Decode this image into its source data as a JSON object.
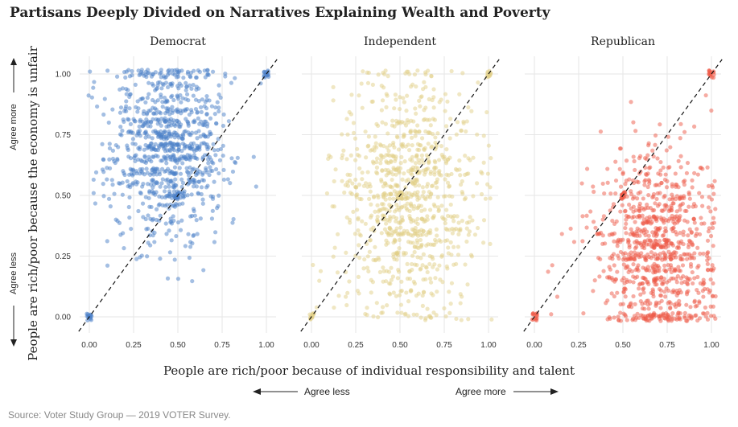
{
  "title": "Partisans Deeply Divided on Narratives Explaining Wealth and Poverty",
  "source": "Source: Voter Study Group — 2019 VOTER Survey.",
  "x_axis": {
    "label": "People are rich/poor because of individual responsibility and talent",
    "agree_less": "Agree less",
    "agree_more": "Agree more"
  },
  "y_axis": {
    "label": "People are rich/poor because the economy is unfair",
    "agree_less": "Agree less",
    "agree_more": "Agree more"
  },
  "chart_data": [
    {
      "type": "scatter",
      "title": "Democrat",
      "color": "#4a7fc8",
      "ticks": [
        "0.00",
        "0.25",
        "0.50",
        "0.75",
        "1.00"
      ],
      "xlim": [
        0,
        1
      ],
      "ylim": [
        0,
        1
      ],
      "reference_line": "y = x (dashed)",
      "center": {
        "x": 0.45,
        "y": 0.7
      },
      "spread": {
        "x": 0.17,
        "y": 0.2
      }
    },
    {
      "type": "scatter",
      "title": "Independent",
      "color": "#e2cf88",
      "ticks": [
        "0.00",
        "0.25",
        "0.50",
        "0.75",
        "1.00"
      ],
      "xlim": [
        0,
        1
      ],
      "ylim": [
        0,
        1
      ],
      "reference_line": "y = x (dashed)",
      "center": {
        "x": 0.55,
        "y": 0.5
      },
      "spread": {
        "x": 0.2,
        "y": 0.25
      }
    },
    {
      "type": "scatter",
      "title": "Republican",
      "color": "#ee5a47",
      "ticks": [
        "0.00",
        "0.25",
        "0.50",
        "0.75",
        "1.00"
      ],
      "xlim": [
        0,
        1
      ],
      "ylim": [
        0,
        1
      ],
      "reference_line": "y = x (dashed)",
      "center": {
        "x": 0.7,
        "y": 0.28
      },
      "spread": {
        "x": 0.17,
        "y": 0.2
      }
    }
  ]
}
